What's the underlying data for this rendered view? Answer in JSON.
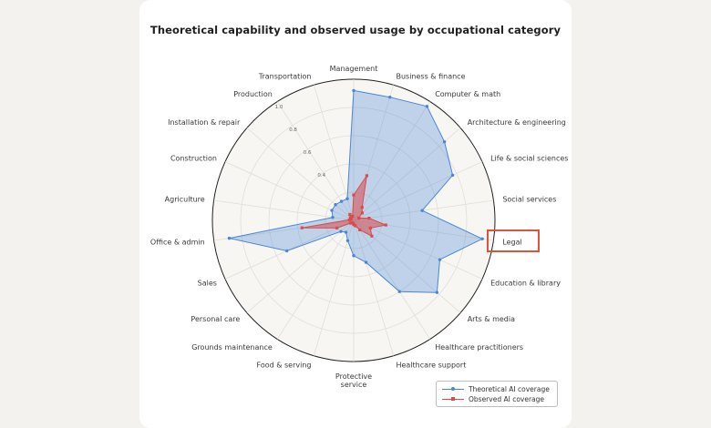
{
  "chart_data": {
    "type": "radar",
    "title": "Theoretical capability and observed usage by occupational category",
    "radial_ticks": [
      "0.4",
      "0.6",
      "0.8",
      "1.0"
    ],
    "rlim": [
      0,
      1
    ],
    "grid": true,
    "legend_position": "bottom-right",
    "highlighted_category": "Legal",
    "categories": [
      "Management",
      "Business & finance",
      "Computer & math",
      "Architecture & engineering",
      "Life & social sciences",
      "Social services",
      "Legal",
      "Education & library",
      "Arts & media",
      "Healthcare practitioners",
      "Healthcare support",
      "Protective service",
      "Food & serving",
      "Grounds maintenance",
      "Personal care",
      "Sales",
      "Office & admin",
      "Agriculture",
      "Construction",
      "Installation & repair",
      "Production",
      "Transportation"
    ],
    "series": [
      {
        "name": "Theoretical AI coverage",
        "color": "#4a86d6",
        "values": [
          0.92,
          0.91,
          0.96,
          0.85,
          0.77,
          0.49,
          0.92,
          0.67,
          0.78,
          0.6,
          0.31,
          0.25,
          0.15,
          0.1,
          0.12,
          0.52,
          0.89,
          0.15,
          0.17,
          0.17,
          0.16,
          0.16
        ]
      },
      {
        "name": "Observed AI coverage",
        "color": "#d94c4c",
        "values": [
          0.18,
          0.33,
          0.11,
          0.08,
          0.04,
          0.11,
          0.23,
          0.13,
          0.17,
          0.08,
          0.04,
          0.03,
          0.02,
          0.02,
          0.03,
          0.13,
          0.37,
          0.03,
          0.02,
          0.03,
          0.05,
          0.03
        ]
      }
    ]
  }
}
